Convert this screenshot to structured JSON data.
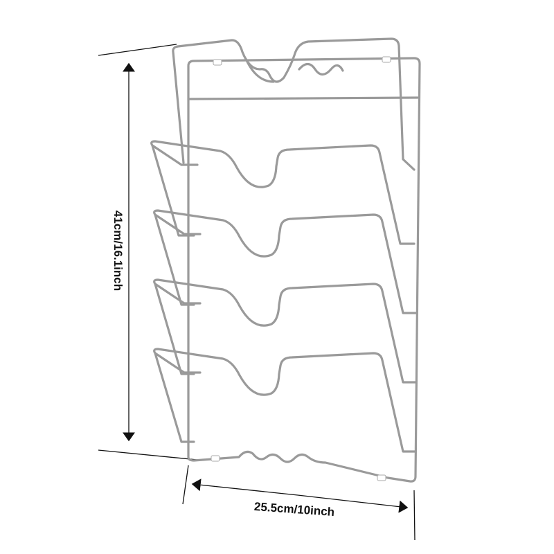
{
  "product": {
    "description_shown": "wall-mounted wire pot lid rack with 4 tiers",
    "tiers": 4,
    "wire_color": "#9a9a9a"
  },
  "dimensions": {
    "height_label": "41cm/16.1inch",
    "width_label": "25.5cm/10inch"
  }
}
